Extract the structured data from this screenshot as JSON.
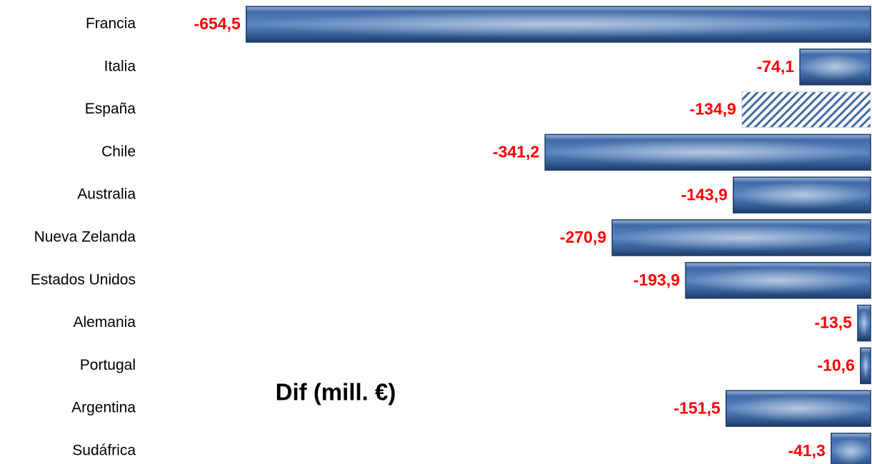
{
  "chart_data": {
    "type": "barh",
    "categories": [
      "Francia",
      "Italia",
      "España",
      "Chile",
      "Australia",
      "Nueva Zelanda",
      "Estados Unidos",
      "Alemania",
      "Portugal",
      "Argentina",
      "Sudáfrica"
    ],
    "values": [
      -654.5,
      -74.1,
      -134.9,
      -341.2,
      -143.9,
      -270.9,
      -193.9,
      -13.5,
      -10.6,
      -151.5,
      -41.3
    ],
    "value_labels": [
      "-654,5",
      "-74,1",
      "-134,9",
      "-341,2",
      "-143,9",
      "-270,9",
      "-193,9",
      "-13,5",
      "-10,6",
      "-151,5",
      "-41,3"
    ],
    "hatch": [
      false,
      false,
      true,
      false,
      false,
      false,
      false,
      false,
      false,
      false,
      false
    ],
    "color": "#4f81bd",
    "label_color": "#ff0000",
    "xlim": [
      -700,
      0
    ],
    "annotation": "Dif (mill. €)"
  }
}
